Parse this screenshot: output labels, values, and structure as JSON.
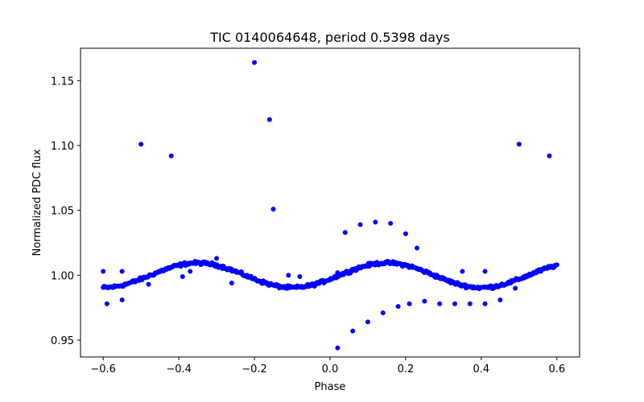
{
  "chart_data": {
    "type": "scatter",
    "title": "TIC 0140064648, period 0.5398 days",
    "xlabel": "Phase",
    "ylabel": "Normalized PDC flux",
    "xlim": [
      -0.66,
      0.66
    ],
    "ylim": [
      0.937,
      1.175
    ],
    "xticks": [
      -0.6,
      -0.4,
      -0.2,
      0.0,
      0.2,
      0.4,
      0.6
    ],
    "xtick_labels": [
      "−0.6",
      "−0.4",
      "−0.2",
      "0.0",
      "0.2",
      "0.4",
      "0.6"
    ],
    "yticks": [
      0.95,
      1.0,
      1.05,
      1.1,
      1.15
    ],
    "ytick_labels": [
      "0.95",
      "1.00",
      "1.05",
      "1.10",
      "1.15"
    ],
    "grid": false,
    "marker_color": "#0000ff",
    "series": [
      {
        "baseline": {
          "model": "sinusoid",
          "phase_range": [
            -0.6,
            0.6
          ],
          "point_count": 480,
          "mean": 1.0,
          "amplitude": 0.0095,
          "cycles_per_phase": 2,
          "peak_phase": -0.35,
          "scatter": 0.0015
        },
        "outliers": {
          "x": [
            -0.6,
            -0.59,
            -0.55,
            -0.55,
            -0.5,
            -0.48,
            -0.42,
            -0.39,
            -0.37,
            -0.3,
            -0.26,
            -0.2,
            -0.16,
            -0.15,
            -0.11,
            -0.08,
            0.02,
            0.02,
            0.04,
            0.06,
            0.08,
            0.1,
            0.12,
            0.14,
            0.16,
            0.18,
            0.2,
            0.21,
            0.23,
            0.25,
            0.29,
            0.33,
            0.35,
            0.37,
            0.41,
            0.41,
            0.45,
            0.49,
            0.5,
            0.58
          ],
          "y": [
            1.003,
            0.978,
            0.981,
            1.003,
            1.101,
            0.993,
            1.092,
            0.999,
            1.003,
            1.013,
            0.994,
            1.164,
            1.12,
            1.051,
            1.0,
            0.999,
            1.002,
            0.944,
            1.033,
            0.957,
            1.039,
            0.964,
            1.041,
            0.971,
            1.04,
            0.976,
            1.032,
            0.978,
            1.021,
            0.98,
            0.978,
            0.978,
            1.003,
            0.978,
            0.978,
            1.003,
            0.981,
            0.99,
            1.101,
            1.092
          ]
        }
      }
    ]
  }
}
